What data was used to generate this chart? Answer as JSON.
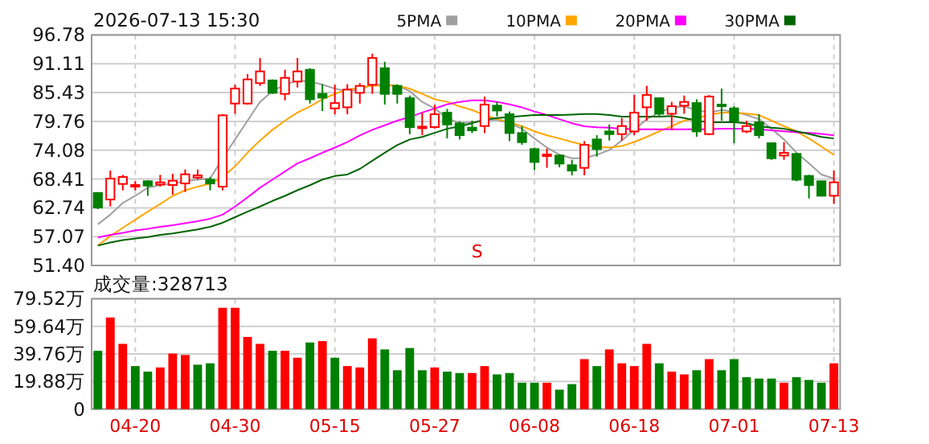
{
  "chart_data": [
    {
      "type": "candlestick",
      "title": "2026-07-13 15:30",
      "tick_labels": "y",
      "grid": true,
      "legend": "top right",
      "categories": [
        null,
        null,
        null,
        null,
        null,
        null,
        null,
        null,
        null,
        null,
        null,
        null,
        null,
        null,
        null,
        null,
        null,
        null,
        null,
        null,
        null,
        null,
        null,
        null,
        null,
        null,
        null,
        null,
        null,
        null,
        null,
        null,
        null,
        null,
        null,
        null,
        null,
        null,
        null,
        null,
        null,
        null,
        null,
        null,
        null,
        null,
        null,
        null,
        null,
        null,
        null,
        null,
        null,
        null,
        null,
        null,
        null,
        null,
        null,
        null
      ],
      "ylim": [
        51.4,
        96.78
      ],
      "yticks": [
        {
          "value": 51.4,
          "label": "51.40"
        },
        57.07,
        62.74,
        68.41,
        74.08,
        79.76,
        85.43,
        91.11,
        96.78
      ],
      "ohlc": [
        [
          65.65,
          65.86,
          62.48,
          62.8
        ],
        [
          64.38,
          70.08,
          63.01,
          68.49
        ],
        [
          67.44,
          69.23,
          66.17,
          68.81
        ],
        [
          66.91,
          67.97,
          66.17,
          67.23
        ],
        [
          67.97,
          68.18,
          65.12,
          67.12
        ],
        [
          67.33,
          69.23,
          66.91,
          67.76
        ],
        [
          67.23,
          69.44,
          65.33,
          68.07
        ],
        [
          67.54,
          70.29,
          65.86,
          69.34
        ],
        [
          68.71,
          70.29,
          68.28,
          69.13
        ],
        [
          68.28,
          68.81,
          66.17,
          67.54
        ],
        [
          66.91,
          81.16,
          66.17,
          80.95
        ],
        [
          83.27,
          86.96,
          81.26,
          86.22
        ],
        [
          83.27,
          89.07,
          83.06,
          88.02
        ],
        [
          87.28,
          92.24,
          86.75,
          89.6
        ],
        [
          87.81,
          88.02,
          85.17,
          85.38
        ],
        [
          85.17,
          89.92,
          83.9,
          88.33
        ],
        [
          87.6,
          92.24,
          86.43,
          89.6
        ],
        [
          89.92,
          90.23,
          83.27,
          84.11
        ],
        [
          85.17,
          87.07,
          81.79,
          84.43
        ],
        [
          82.32,
          86.96,
          81.16,
          83.37
        ],
        [
          82.53,
          87.07,
          81.16,
          86.01
        ],
        [
          85.38,
          87.28,
          83.27,
          86.75
        ],
        [
          86.96,
          93.08,
          85.17,
          92.24
        ],
        [
          90.23,
          91.5,
          83.06,
          85.17
        ],
        [
          86.75,
          87.07,
          83.27,
          85.17
        ],
        [
          84.32,
          84.85,
          77.25,
          78.63
        ],
        [
          78.41,
          81.47,
          77.04,
          78.73
        ],
        [
          78.63,
          83.06,
          78.31,
          81.16
        ],
        [
          81.47,
          82.21,
          76.41,
          79.15
        ],
        [
          79.36,
          79.79,
          76.2,
          77.04
        ],
        [
          78.52,
          79.89,
          77.46,
          77.99
        ],
        [
          78.84,
          84.64,
          77.46,
          83.06
        ],
        [
          82.85,
          83.59,
          80.74,
          81.9
        ],
        [
          81.16,
          81.69,
          75.88,
          77.46
        ],
        [
          77.46,
          78.84,
          75.14,
          75.67
        ],
        [
          74.3,
          74.62,
          70.18,
          71.77
        ],
        [
          72.93,
          74.4,
          70.61,
          73.24
        ],
        [
          73.03,
          73.24,
          70.71,
          71.45
        ],
        [
          71.13,
          72.19,
          69.13,
          70.08
        ],
        [
          70.61,
          75.88,
          69.13,
          75.14
        ],
        [
          76.2,
          77.04,
          72.82,
          74.3
        ],
        [
          77.78,
          79.15,
          75.99,
          77.25
        ],
        [
          77.25,
          80.42,
          75.99,
          78.84
        ],
        [
          77.78,
          84.96,
          77.04,
          81.47
        ],
        [
          82.53,
          86.75,
          79.89,
          84.96
        ],
        [
          84.32,
          84.43,
          80.63,
          81.26
        ],
        [
          81.26,
          83.59,
          77.99,
          82.74
        ],
        [
          82.85,
          84.85,
          81.26,
          83.59
        ],
        [
          83.37,
          84.11,
          76.73,
          77.78
        ],
        [
          77.25,
          84.96,
          77.04,
          84.64
        ],
        [
          83.06,
          86.22,
          79.89,
          82.74
        ],
        [
          82.32,
          82.74,
          75.46,
          79.89
        ],
        [
          77.78,
          79.89,
          77.46,
          78.84
        ],
        [
          79.58,
          81.16,
          76.41,
          77.04
        ],
        [
          75.46,
          75.46,
          72.19,
          72.5
        ],
        [
          73.03,
          75.67,
          72.19,
          73.56
        ],
        [
          73.35,
          73.56,
          67.97,
          68.28
        ],
        [
          69.02,
          69.23,
          64.59,
          67.23
        ],
        [
          67.97,
          67.97,
          65.12,
          65.12
        ],
        [
          65.12,
          70.08,
          63.53,
          67.76
        ]
      ],
      "colors": [
        "#008000",
        "#ff0000",
        "#ff0000",
        "#ff0000",
        "#008000",
        "#ff0000",
        "#ff0000",
        "#ff0000",
        "#ff0000",
        "#008000",
        "#ff0000",
        "#ff0000",
        "#ff0000",
        "#ff0000",
        "#008000",
        "#ff0000",
        "#ff0000",
        "#008000",
        "#008000",
        "#ff0000",
        "#ff0000",
        "#ff0000",
        "#ff0000",
        "#008000",
        "#008000",
        "#008000",
        "#ff0000",
        "#ff0000",
        "#008000",
        "#008000",
        "#008000",
        "#ff0000",
        "#008000",
        "#008000",
        "#008000",
        "#008000",
        "#ff0000",
        "#008000",
        "#008000",
        "#ff0000",
        "#008000",
        "#008000",
        "#ff0000",
        "#ff0000",
        "#ff0000",
        "#008000",
        "#ff0000",
        "#ff0000",
        "#008000",
        "#ff0000",
        "#008000",
        "#008000",
        "#ff0000",
        "#008000",
        "#008000",
        "#ff0000",
        "#008000",
        "#008000",
        "#008000",
        "#ff0000"
      ],
      "series": [
        {
          "name": "5PMA",
          "type": "line",
          "color": "#a0a0a0",
          "values": [
            59.5,
            61.4,
            63.7,
            65.1,
            66.7,
            67.2,
            67.5,
            68.0,
            68.3,
            68.5,
            72.5,
            76.2,
            79.9,
            83.6,
            85.7,
            87.0,
            87.8,
            87.6,
            87.0,
            86.2,
            85.7,
            86.0,
            87.0,
            87.0,
            86.8,
            85.7,
            83.6,
            82.3,
            80.4,
            79.4,
            79.6,
            79.9,
            80.1,
            79.4,
            78.3,
            76.4,
            74.6,
            73.2,
            72.5,
            72.5,
            73.2,
            74.1,
            76.0,
            78.1,
            80.2,
            81.5,
            82.5,
            82.7,
            82.0,
            81.5,
            82.0,
            81.7,
            81.0,
            80.2,
            78.3,
            76.2,
            73.6,
            71.5,
            69.3,
            68.5
          ]
        },
        {
          "name": "10PMA",
          "type": "line",
          "color": "#ffa500",
          "values": [
            55.3,
            57.2,
            58.8,
            60.4,
            62.0,
            63.5,
            65.1,
            66.2,
            66.9,
            67.5,
            68.8,
            70.9,
            73.6,
            76.0,
            78.1,
            79.9,
            81.5,
            82.7,
            84.1,
            85.2,
            86.0,
            86.4,
            86.8,
            86.8,
            86.8,
            86.2,
            85.2,
            84.1,
            83.6,
            82.7,
            82.0,
            81.0,
            80.2,
            79.6,
            78.8,
            77.8,
            77.0,
            76.4,
            75.7,
            75.1,
            74.8,
            74.6,
            74.9,
            75.7,
            76.7,
            77.8,
            78.8,
            79.9,
            80.4,
            81.0,
            81.5,
            81.5,
            81.3,
            81.0,
            79.9,
            78.8,
            77.8,
            76.4,
            74.8,
            73.2
          ]
        },
        {
          "name": "20PMA",
          "type": "line",
          "color": "#ff00ff",
          "values": [
            56.9,
            57.4,
            57.8,
            58.3,
            58.6,
            59.0,
            59.3,
            59.7,
            60.1,
            60.6,
            61.4,
            63.0,
            64.8,
            66.7,
            68.3,
            69.9,
            71.5,
            72.5,
            73.6,
            74.6,
            75.7,
            77.0,
            78.1,
            79.0,
            79.9,
            80.6,
            81.5,
            82.3,
            83.1,
            83.6,
            83.9,
            83.9,
            83.6,
            83.1,
            82.5,
            81.7,
            81.0,
            80.2,
            79.4,
            78.8,
            78.6,
            78.5,
            78.3,
            78.2,
            78.2,
            78.2,
            78.2,
            78.2,
            78.2,
            78.2,
            78.3,
            78.3,
            78.3,
            78.2,
            78.0,
            77.8,
            77.6,
            77.5,
            77.3,
            77.0
          ]
        },
        {
          "name": "30PMA",
          "type": "line",
          "color": "#006400",
          "values": [
            55.3,
            55.9,
            56.4,
            56.7,
            57.0,
            57.4,
            57.7,
            58.1,
            58.5,
            59.0,
            59.8,
            60.9,
            62.0,
            63.0,
            64.1,
            65.1,
            66.2,
            67.2,
            68.3,
            69.0,
            69.3,
            70.4,
            72.0,
            73.6,
            75.1,
            76.2,
            76.7,
            77.5,
            78.3,
            78.8,
            79.4,
            80.1,
            80.4,
            80.6,
            80.8,
            81.0,
            81.0,
            81.0,
            81.1,
            81.2,
            81.2,
            81.0,
            80.7,
            80.7,
            80.7,
            80.7,
            80.8,
            80.4,
            79.9,
            79.6,
            79.6,
            79.6,
            79.4,
            78.8,
            78.5,
            78.3,
            77.8,
            77.3,
            76.7,
            76.4
          ]
        }
      ],
      "annotations": [
        "S"
      ]
    },
    {
      "type": "bar",
      "title": "成交量:328713",
      "grid": true,
      "categories": [
        null,
        null,
        null,
        "04-20",
        null,
        null,
        null,
        null,
        null,
        null,
        null,
        "04-30",
        null,
        null,
        null,
        null,
        null,
        null,
        null,
        "05-15",
        null,
        null,
        null,
        null,
        null,
        null,
        null,
        "05-27",
        null,
        null,
        null,
        null,
        null,
        null,
        null,
        "06-08",
        null,
        null,
        null,
        null,
        null,
        null,
        null,
        "06-18",
        null,
        null,
        null,
        null,
        null,
        null,
        null,
        "07-01",
        null,
        null,
        null,
        null,
        null,
        null,
        null,
        "07-13"
      ],
      "ylim": [
        0,
        79.52
      ],
      "yticks": [
        0,
        {
          "value": 19.88,
          "label": "19.88万"
        },
        {
          "value": 39.76,
          "label": "39.76万"
        },
        {
          "value": 59.64,
          "label": "59.64万"
        },
        {
          "value": 79.52,
          "label": "79.52万"
        }
      ],
      "values": [
        42,
        66,
        47,
        31,
        27,
        30,
        40,
        39,
        32,
        33,
        73,
        73,
        52,
        47,
        42,
        42,
        37,
        48,
        49,
        37,
        31,
        30,
        51,
        43,
        28,
        44,
        28,
        30,
        27,
        26,
        26,
        31,
        25,
        26,
        19,
        19,
        19,
        14,
        18,
        36,
        31,
        43,
        33,
        31,
        47,
        33,
        27,
        25,
        28,
        36,
        28,
        36,
        23,
        22,
        22,
        19,
        23,
        21,
        19,
        33
      ],
      "colors": [
        "#008000",
        "#ff0000",
        "#ff0000",
        "#008000",
        "#008000",
        "#ff0000",
        "#ff0000",
        "#ff0000",
        "#008000",
        "#008000",
        "#ff0000",
        "#ff0000",
        "#ff0000",
        "#ff0000",
        "#008000",
        "#ff0000",
        "#ff0000",
        "#008000",
        "#ff0000",
        "#008000",
        "#ff0000",
        "#ff0000",
        "#ff0000",
        "#008000",
        "#008000",
        "#008000",
        "#008000",
        "#ff0000",
        "#008000",
        "#008000",
        "#ff0000",
        "#ff0000",
        "#008000",
        "#008000",
        "#008000",
        "#008000",
        "#ff0000",
        "#008000",
        "#008000",
        "#ff0000",
        "#008000",
        "#ff0000",
        "#ff0000",
        "#ff0000",
        "#ff0000",
        "#008000",
        "#ff0000",
        "#ff0000",
        "#008000",
        "#ff0000",
        "#008000",
        "#008000",
        "#008000",
        "#008000",
        "#008000",
        "#ff0000",
        "#008000",
        "#008000",
        "#008000",
        "#ff0000"
      ]
    }
  ]
}
